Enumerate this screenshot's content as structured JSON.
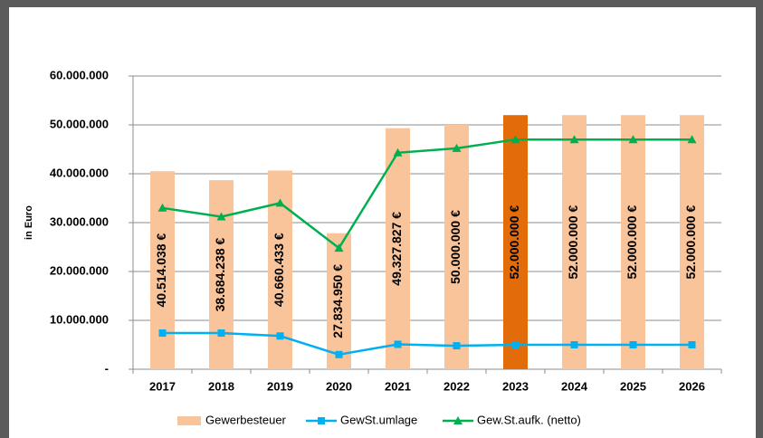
{
  "chart_data": {
    "type": "bar-line",
    "y_label": "in Euro",
    "categories": [
      "2017",
      "2018",
      "2019",
      "2020",
      "2021",
      "2022",
      "2023",
      "2024",
      "2025",
      "2026"
    ],
    "series": [
      {
        "name": "Gewerbesteuer",
        "type": "bar",
        "color": "#F9C49A",
        "colors": [
          "#F9C49A",
          "#F9C49A",
          "#F9C49A",
          "#F9C49A",
          "#F9C49A",
          "#F9C49A",
          "#E36C0A",
          "#F9C49A",
          "#F9C49A",
          "#F9C49A"
        ],
        "values": [
          40514038,
          38684238,
          40660433,
          27834950,
          49327827,
          50000000,
          52000000,
          52000000,
          52000000,
          52000000
        ],
        "value_labels": [
          "40.514.038 €",
          "38.684.238 €",
          "40.660.433 €",
          "27.834.950 €",
          "49.327.827 €",
          "50.000.000 €",
          "52.000.000 €",
          "52.000.000 €",
          "52.000.000 €",
          "52.000.000 €"
        ]
      },
      {
        "name": "GewSt.umlage",
        "type": "line",
        "marker": "square",
        "color": "#00B0F0",
        "values": [
          7400000,
          7400000,
          6800000,
          3000000,
          5100000,
          4800000,
          5000000,
          5000000,
          5000000,
          5000000
        ]
      },
      {
        "name": "Gew.St.aufk. (netto)",
        "type": "line",
        "marker": "triangle",
        "color": "#00B050",
        "values": [
          33000000,
          31200000,
          34000000,
          24800000,
          44300000,
          45200000,
          47000000,
          47000000,
          47000000,
          47000000
        ]
      }
    ],
    "ylim": [
      0,
      60000000
    ],
    "yticks": [
      {
        "value": 0,
        "label": "-"
      },
      {
        "value": 10000000,
        "label": "10.000.000"
      },
      {
        "value": 20000000,
        "label": "20.000.000"
      },
      {
        "value": 30000000,
        "label": "30.000.000"
      },
      {
        "value": 40000000,
        "label": "40.000.000"
      },
      {
        "value": 50000000,
        "label": "50.000.000"
      },
      {
        "value": 60000000,
        "label": "60.000.000"
      }
    ],
    "grid": true,
    "legend": "bottom"
  }
}
